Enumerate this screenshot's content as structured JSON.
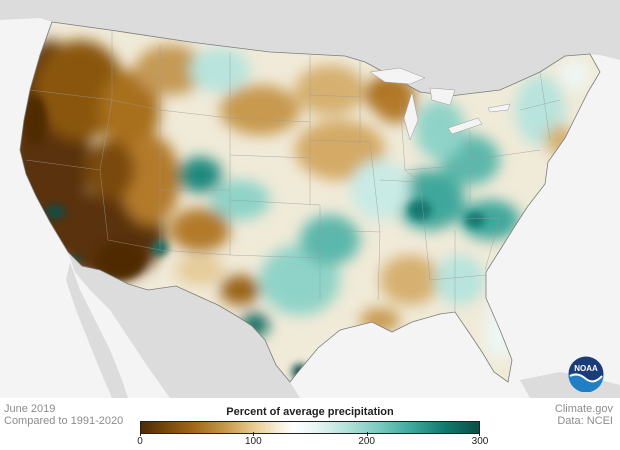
{
  "left_footer": {
    "line1": "June 2019",
    "line2": "Compared to 1991-2020"
  },
  "right_footer": {
    "line1": "Climate.gov",
    "line2": "Data: NCEI"
  },
  "legend": {
    "title": "Percent of average precipitation",
    "ticks": [
      "0",
      "100",
      "200",
      "300"
    ],
    "tick_values": [
      0,
      100,
      200,
      300
    ],
    "range": [
      0,
      300
    ]
  },
  "logo": {
    "text": "NOAA",
    "icon": "noaa-logo-icon"
  },
  "colors": {
    "very_dry": "#4f2a05",
    "dry": "#a26a1c",
    "slightly_dry": "#e8c98d",
    "average": "#ffffff",
    "slightly_wet": "#b8e4dd",
    "wet": "#3fa79c",
    "very_wet": "#0b4e47",
    "background": "#f4f4f4",
    "neighbors": "#dcdcdc"
  }
}
